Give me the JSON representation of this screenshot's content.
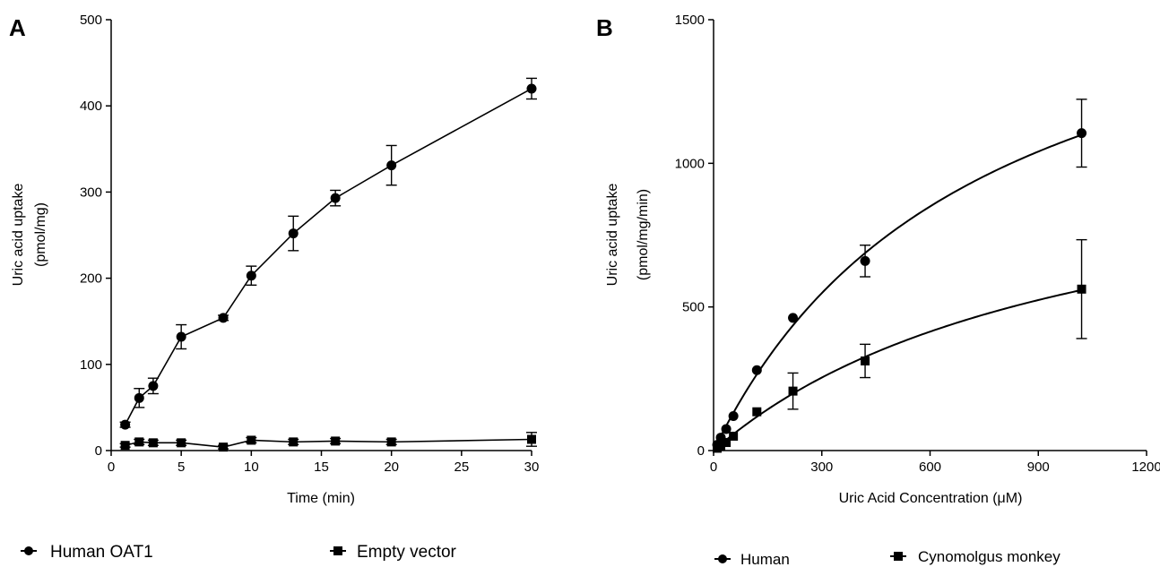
{
  "chart_data": [
    {
      "panel_label": "A",
      "type": "line",
      "xlabel": "Time (min)",
      "ylabel": [
        "Uric acid uptake",
        "(pmol/mg)"
      ],
      "xlim": [
        0,
        30
      ],
      "ylim": [
        0,
        500
      ],
      "xticks": [
        0,
        5,
        10,
        15,
        20,
        25,
        30
      ],
      "yticks": [
        0,
        100,
        200,
        300,
        400,
        500
      ],
      "legend_position": "bottom",
      "series": [
        {
          "name": "Human OAT1",
          "marker": "circle",
          "x": [
            1,
            2,
            3,
            5,
            8,
            10,
            13,
            16,
            20,
            30
          ],
          "y": [
            30,
            61,
            75,
            132,
            154,
            203,
            252,
            293,
            331,
            420
          ],
          "err": [
            3,
            11,
            9,
            14,
            3,
            11,
            20,
            9,
            23,
            12
          ]
        },
        {
          "name": "Empty vector",
          "marker": "square",
          "x": [
            1,
            2,
            3,
            5,
            8,
            10,
            13,
            16,
            20,
            30
          ],
          "y": [
            6,
            10,
            9,
            9,
            4,
            12,
            10,
            11,
            10,
            13
          ],
          "err": [
            2,
            3,
            3,
            3,
            2,
            3,
            3,
            3,
            3,
            8
          ]
        }
      ]
    },
    {
      "panel_label": "B",
      "type": "scatter",
      "xlabel": "Uric Acid Concentration (μM)",
      "ylabel": [
        "Uric acid uptake",
        "(pmol/mg/min)"
      ],
      "xlim": [
        0,
        1200
      ],
      "ylim": [
        0,
        1500
      ],
      "xticks": [
        0,
        300,
        600,
        900,
        1200
      ],
      "yticks": [
        0,
        500,
        1000,
        1500
      ],
      "legend_position": "bottom",
      "fit": "Michaelis-Menten curve",
      "series": [
        {
          "name": "Human",
          "marker": "circle",
          "x": [
            10,
            20,
            35,
            55,
            120,
            220,
            420,
            1020
          ],
          "y": [
            20,
            45,
            75,
            120,
            280,
            462,
            660,
            1105
          ],
          "err": [
            0,
            0,
            0,
            0,
            0,
            0,
            55,
            118
          ]
        },
        {
          "name": "Cynomolgus monkey",
          "marker": "square",
          "x": [
            10,
            20,
            35,
            55,
            120,
            220,
            420,
            1020
          ],
          "y": [
            8,
            15,
            28,
            50,
            135,
            207,
            312,
            562
          ],
          "err": [
            0,
            0,
            0,
            0,
            0,
            63,
            58,
            172
          ]
        }
      ]
    }
  ]
}
